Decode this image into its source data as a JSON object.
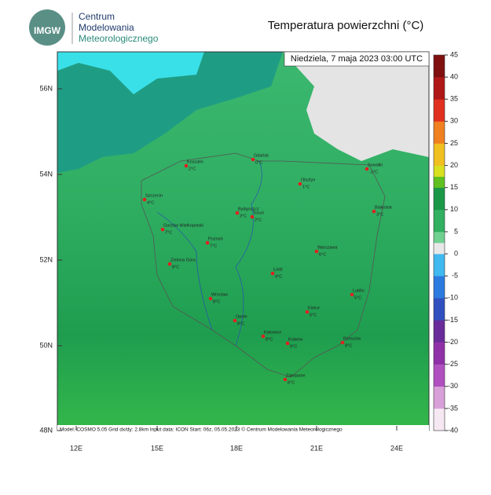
{
  "header": {
    "logo_text": "IMGW",
    "org_lines": [
      "Centrum",
      "Modelowania",
      "Meteorologicznego"
    ],
    "title": "Temperatura powierzchni (°C)"
  },
  "map": {
    "timestamp": "Niedziela, 7 maja 2023 03:00 UTC",
    "footer": "Model: COSMO 5.05  Grid dx/dy: 2.8km  Input data: ICON  Start: 06z, 05.05.2023  © Centrum Modelowania Meteorologicznego",
    "lat_labels": [
      "56N",
      "54N",
      "52N",
      "50N",
      "48N"
    ],
    "lon_labels": [
      "12E",
      "15E",
      "18E",
      "21E",
      "24E"
    ],
    "cities": [
      {
        "name": "Koszalin",
        "temp": "2°C"
      },
      {
        "name": "Gdańsk",
        "temp": "0°C"
      },
      {
        "name": "Olsztyn",
        "temp": "1°C"
      },
      {
        "name": "Suwałki",
        "temp": "-1°C"
      },
      {
        "name": "Szczecin",
        "temp": "4°C"
      },
      {
        "name": "Bydgoszcz",
        "temp": "3°C"
      },
      {
        "name": "Toruń",
        "temp": "2°C"
      },
      {
        "name": "Białystok",
        "temp": "3°C"
      },
      {
        "name": "Gorzów Wielkopolski",
        "temp": "7°C"
      },
      {
        "name": "Poznań",
        "temp": "7°C"
      },
      {
        "name": "Warszawa",
        "temp": "6°C"
      },
      {
        "name": "Zielona Góra",
        "temp": "8°C"
      },
      {
        "name": "Łódź",
        "temp": "4°C"
      },
      {
        "name": "Lublin",
        "temp": "5°C"
      },
      {
        "name": "Wrocław",
        "temp": "8°C"
      },
      {
        "name": "Kielce",
        "temp": "6°C"
      },
      {
        "name": "Opole",
        "temp": "8°C"
      },
      {
        "name": "Katowice",
        "temp": "8°C"
      },
      {
        "name": "Kraków",
        "temp": "9°C"
      },
      {
        "name": "Rzeszów",
        "temp": "8°C"
      },
      {
        "name": "Zakopane",
        "temp": "6°C"
      }
    ]
  },
  "colorbar": {
    "ticks": [
      45,
      40,
      35,
      30,
      25,
      20,
      15,
      10,
      5,
      0,
      -5,
      -10,
      -15,
      -20,
      -25,
      -30,
      -35,
      -40
    ]
  }
}
